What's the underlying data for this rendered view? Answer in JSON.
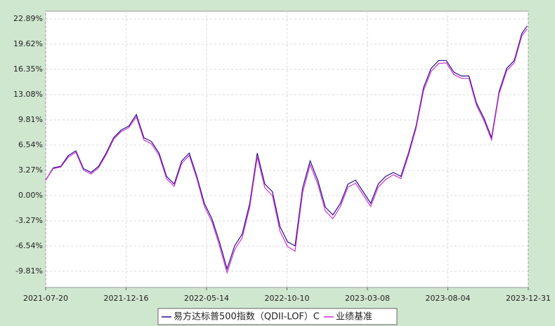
{
  "chart_data": {
    "type": "line",
    "x": [
      "2021-07-20",
      "2021-08-03",
      "2021-08-17",
      "2021-08-31",
      "2021-09-14",
      "2021-09-28",
      "2021-10-12",
      "2021-10-26",
      "2021-11-09",
      "2021-11-23",
      "2021-12-07",
      "2021-12-21",
      "2022-01-04",
      "2022-01-18",
      "2022-02-01",
      "2022-02-15",
      "2022-03-01",
      "2022-03-15",
      "2022-03-29",
      "2022-04-12",
      "2022-04-26",
      "2022-05-10",
      "2022-05-24",
      "2022-06-07",
      "2022-06-21",
      "2022-07-05",
      "2022-07-19",
      "2022-08-02",
      "2022-08-16",
      "2022-08-30",
      "2022-09-13",
      "2022-09-27",
      "2022-10-11",
      "2022-10-25",
      "2022-11-08",
      "2022-11-22",
      "2022-12-06",
      "2022-12-20",
      "2023-01-03",
      "2023-01-17",
      "2023-01-31",
      "2023-02-14",
      "2023-02-28",
      "2023-03-14",
      "2023-03-28",
      "2023-04-11",
      "2023-04-25",
      "2023-05-09",
      "2023-05-23",
      "2023-06-06",
      "2023-06-20",
      "2023-07-04",
      "2023-07-18",
      "2023-08-01",
      "2023-08-15",
      "2023-08-29",
      "2023-09-12",
      "2023-09-26",
      "2023-10-10",
      "2023-10-24",
      "2023-11-07",
      "2023-11-21",
      "2023-12-05",
      "2023-12-19",
      "2023-12-29"
    ],
    "series": [
      {
        "name": "易方达标普500指数（QDII-LOF）C",
        "color": "#2a0a8c",
        "values": [
          2.0,
          3.6,
          3.8,
          5.2,
          5.8,
          3.5,
          3.0,
          3.8,
          5.5,
          7.5,
          8.5,
          9.0,
          10.5,
          7.5,
          7.0,
          5.5,
          2.5,
          1.5,
          4.5,
          5.5,
          2.5,
          -1.0,
          -3.0,
          -6.0,
          -9.5,
          -6.5,
          -5.0,
          -1.0,
          5.5,
          1.5,
          0.5,
          -4.0,
          -6.0,
          -6.5,
          1.0,
          4.5,
          2.0,
          -1.5,
          -2.5,
          -1.0,
          1.5,
          2.0,
          0.5,
          -1.0,
          1.5,
          2.5,
          3.0,
          2.5,
          5.5,
          9.0,
          14.0,
          16.5,
          17.5,
          17.5,
          16.0,
          15.5,
          15.5,
          12.0,
          10.0,
          7.5,
          13.5,
          16.5,
          17.5,
          21.0,
          22.0
        ]
      },
      {
        "name": "业绩基准",
        "color": "#cc33cc",
        "values": [
          2.0,
          3.5,
          3.7,
          5.0,
          5.6,
          3.3,
          2.8,
          3.6,
          5.3,
          7.3,
          8.3,
          8.8,
          10.2,
          7.2,
          6.7,
          5.2,
          2.2,
          1.2,
          4.2,
          5.2,
          2.2,
          -1.4,
          -3.4,
          -6.5,
          -10.0,
          -7.0,
          -5.5,
          -1.5,
          5.0,
          1.0,
          0.0,
          -4.6,
          -6.6,
          -7.2,
          0.4,
          4.0,
          1.5,
          -2.0,
          -3.0,
          -1.4,
          1.1,
          1.6,
          0.1,
          -1.4,
          1.1,
          2.1,
          2.7,
          2.2,
          5.2,
          8.7,
          13.6,
          16.1,
          17.1,
          17.2,
          15.7,
          15.2,
          15.2,
          11.7,
          9.7,
          7.2,
          13.2,
          16.2,
          17.2,
          20.7,
          21.6
        ]
      }
    ],
    "xlim": [
      "2021-07-20",
      "2023-12-31"
    ],
    "xticks": [
      "2021-07-20",
      "2021-12-16",
      "2022-05-14",
      "2022-10-10",
      "2023-03-08",
      "2023-08-04",
      "2023-12-31"
    ],
    "ylim": [
      -11.9,
      23.89
    ],
    "yticks": [
      {
        "value": 22.89,
        "label": "22.89%"
      },
      {
        "value": 19.62,
        "label": "19.62%"
      },
      {
        "value": 16.35,
        "label": "16.35%"
      },
      {
        "value": 13.08,
        "label": "13.08%"
      },
      {
        "value": 9.81,
        "label": "9.81%"
      },
      {
        "value": 6.54,
        "label": "6.54%"
      },
      {
        "value": 3.27,
        "label": "3.27%"
      },
      {
        "value": 0,
        "label": "0.00%"
      },
      {
        "value": -3.27,
        "label": "-3.27%"
      },
      {
        "value": -6.54,
        "label": "-6.54%"
      },
      {
        "value": -9.81,
        "label": "-9.81%"
      }
    ],
    "grid": true
  }
}
